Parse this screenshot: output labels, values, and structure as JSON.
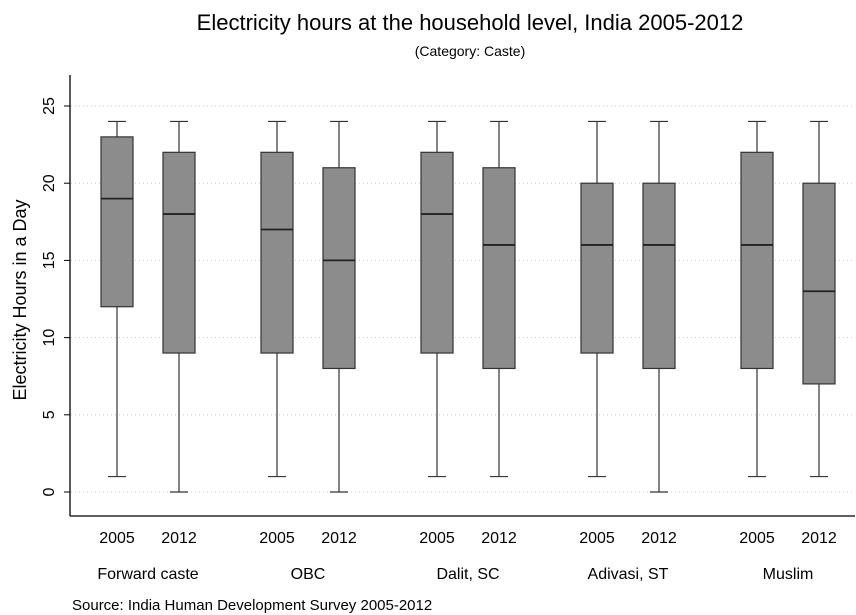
{
  "chart_data": {
    "type": "boxplot",
    "title": "Electricity hours at the household level, India 2005-2012",
    "subtitle": "(Category: Caste)",
    "ylabel": "Electricity Hours in a Day",
    "xlabel": "",
    "ylim": [
      0,
      25
    ],
    "yticks": [
      0,
      5,
      10,
      15,
      20,
      25
    ],
    "grid": true,
    "orientation": "vertical",
    "box_color": "#8c8c8c",
    "source": "Source: India Human Development Survey 2005-2012",
    "groups": [
      {
        "label": "Forward caste",
        "boxes": [
          {
            "year": "2005",
            "min": 1,
            "q1": 12,
            "median": 19,
            "q3": 23,
            "max": 24
          },
          {
            "year": "2012",
            "min": 0,
            "q1": 9,
            "median": 18,
            "q3": 22,
            "max": 24
          }
        ]
      },
      {
        "label": "OBC",
        "boxes": [
          {
            "year": "2005",
            "min": 1,
            "q1": 9,
            "median": 17,
            "q3": 22,
            "max": 24
          },
          {
            "year": "2012",
            "min": 0,
            "q1": 8,
            "median": 15,
            "q3": 21,
            "max": 24
          }
        ]
      },
      {
        "label": "Dalit, SC",
        "boxes": [
          {
            "year": "2005",
            "min": 1,
            "q1": 9,
            "median": 18,
            "q3": 22,
            "max": 24
          },
          {
            "year": "2012",
            "min": 1,
            "q1": 8,
            "median": 16,
            "q3": 21,
            "max": 24
          }
        ]
      },
      {
        "label": "Adivasi, ST",
        "boxes": [
          {
            "year": "2005",
            "min": 1,
            "q1": 9,
            "median": 16,
            "q3": 20,
            "max": 24
          },
          {
            "year": "2012",
            "min": 0,
            "q1": 8,
            "median": 16,
            "q3": 20,
            "max": 24
          }
        ]
      },
      {
        "label": "Muslim",
        "boxes": [
          {
            "year": "2005",
            "min": 1,
            "q1": 8,
            "median": 16,
            "q3": 22,
            "max": 24
          },
          {
            "year": "2012",
            "min": 1,
            "q1": 7,
            "median": 13,
            "q3": 20,
            "max": 24
          }
        ]
      }
    ]
  }
}
